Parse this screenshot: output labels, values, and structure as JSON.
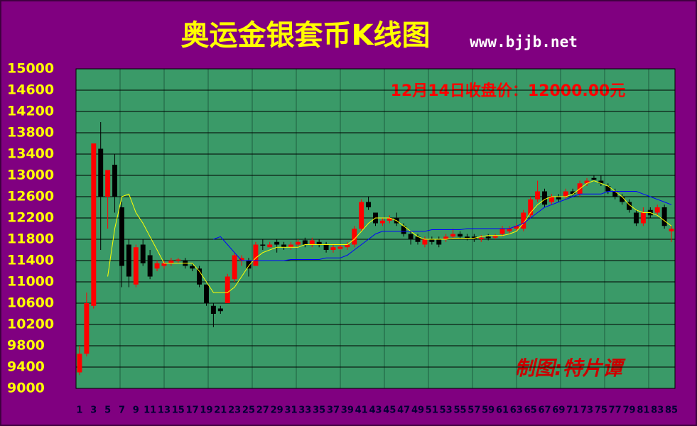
{
  "chart_data": {
    "type": "candlestick",
    "title": "奥运金银套币K线图",
    "subtitle": "www.bjjb.net",
    "annotation": "12月14日收盘价：12000.00元",
    "credit": "制图:特片谭",
    "up_color": "#ff0000",
    "down_color": "#000000",
    "ylim": [
      9000,
      15000
    ],
    "yticks": [
      9000,
      9400,
      9800,
      10200,
      10600,
      11000,
      11400,
      11800,
      12200,
      12600,
      13000,
      13400,
      13800,
      14200,
      14600,
      15000
    ],
    "grid": true,
    "categories": [
      "1",
      null,
      "3",
      null,
      "5",
      null,
      "7",
      null,
      "9",
      null,
      "11",
      null,
      "13",
      null,
      "15",
      null,
      "17",
      null,
      "19",
      null,
      "21",
      null,
      "23",
      null,
      "25",
      null,
      "27",
      null,
      "29",
      null,
      "31",
      null,
      "33",
      null,
      "35",
      null,
      "37",
      null,
      "39",
      null,
      "41",
      null,
      "43",
      null,
      "45",
      null,
      "47",
      null,
      "49",
      null,
      "51",
      null,
      "53",
      null,
      "55",
      null,
      "57",
      null,
      "59",
      null,
      "61",
      null,
      "63",
      null,
      "65",
      null,
      "67",
      null,
      "69",
      null,
      "71",
      null,
      "73",
      null,
      "75",
      null,
      "77",
      null,
      "79",
      null,
      "81",
      null,
      "83",
      null,
      "85"
    ],
    "open": [
      9300,
      9650,
      10550,
      13500,
      12600,
      13200,
      12400,
      11700,
      10950,
      11700,
      11500,
      11250,
      11300,
      11350,
      11400,
      11400,
      11300,
      11250,
      10950,
      10550,
      10500,
      10600,
      11050,
      11400,
      11400,
      11300,
      11700,
      11650,
      11750,
      11700,
      11650,
      11700,
      11780,
      11700,
      11750,
      11700,
      11600,
      11620,
      11650,
      11700,
      12000,
      12500,
      12300,
      12100,
      12150,
      12200,
      12050,
      11900,
      11850,
      11700,
      11800,
      11800,
      11800,
      11850,
      11900,
      11850,
      11850,
      11800,
      11850,
      11830,
      11900,
      11950,
      12000,
      12000,
      12250,
      12550,
      12700,
      12500,
      12600,
      12600,
      12700,
      12650,
      12850,
      12950,
      12900,
      12800,
      12700,
      12600,
      12500,
      12300,
      12100,
      12350,
      12300,
      12400,
      11950
    ],
    "high": [
      9800,
      10800,
      13600,
      14000,
      13100,
      13400,
      12500,
      11800,
      11700,
      11800,
      11600,
      11400,
      11400,
      11450,
      11450,
      11450,
      11350,
      11300,
      10950,
      10600,
      10550,
      11150,
      11550,
      11500,
      11450,
      11750,
      11800,
      11750,
      11800,
      11750,
      11750,
      11800,
      11830,
      11830,
      11800,
      11750,
      11700,
      11700,
      11750,
      12050,
      12550,
      12600,
      12300,
      12200,
      12250,
      12300,
      12100,
      11950,
      11900,
      11850,
      11850,
      11850,
      11900,
      12000,
      11950,
      11900,
      11900,
      11880,
      11900,
      11900,
      12050,
      12050,
      12100,
      12350,
      12600,
      12900,
      12750,
      12650,
      12650,
      12750,
      12750,
      12900,
      12950,
      13000,
      13000,
      12850,
      12750,
      12650,
      12550,
      12350,
      12400,
      12400,
      12450,
      12450,
      12050
    ],
    "low": [
      9250,
      9600,
      10500,
      11600,
      12000,
      12300,
      10900,
      10900,
      10900,
      11300,
      11050,
      11200,
      11250,
      11300,
      11350,
      11250,
      11200,
      10900,
      10550,
      10150,
      10400,
      10600,
      11000,
      11300,
      11100,
      11300,
      11600,
      11650,
      11550,
      11600,
      11600,
      11650,
      11650,
      11650,
      11650,
      11550,
      11550,
      11600,
      11600,
      11650,
      11950,
      12350,
      12050,
      12050,
      12100,
      12050,
      11850,
      11700,
      11700,
      11650,
      11700,
      11650,
      11750,
      11800,
      11800,
      11780,
      11750,
      11750,
      11780,
      11800,
      11850,
      11900,
      11950,
      11950,
      12200,
      12500,
      12400,
      12450,
      12500,
      12550,
      12600,
      12600,
      12800,
      12900,
      12800,
      12650,
      12550,
      12450,
      12300,
      12050,
      12050,
      12200,
      12250,
      12000,
      11750
    ],
    "close": [
      9650,
      10600,
      13600,
      12600,
      13100,
      12600,
      11300,
      11100,
      11650,
      11350,
      11100,
      11350,
      11350,
      11400,
      11420,
      11300,
      11250,
      10950,
      10600,
      10400,
      10450,
      11100,
      11500,
      11450,
      11250,
      11700,
      11680,
      11700,
      11700,
      11650,
      11700,
      11750,
      11700,
      11780,
      11700,
      11600,
      11650,
      11660,
      11700,
      12000,
      12500,
      12400,
      12100,
      12150,
      12200,
      12100,
      11900,
      11800,
      11750,
      11800,
      11750,
      11700,
      11850,
      11900,
      11850,
      11820,
      11800,
      11830,
      11820,
      11860,
      12000,
      12000,
      12050,
      12300,
      12550,
      12700,
      12450,
      12600,
      12550,
      12700,
      12650,
      12850,
      12900,
      12920,
      12850,
      12700,
      12600,
      12500,
      12350,
      12100,
      12300,
      12250,
      12400,
      12050,
      12000
    ],
    "ma_lines": [
      {
        "color": "#ffff00",
        "values": [
          null,
          null,
          null,
          null,
          11100,
          12000,
          12600,
          12650,
          12300,
          12100,
          11850,
          11600,
          11350,
          11350,
          11350,
          11350,
          11350,
          11200,
          11000,
          10800,
          10800,
          10800,
          10900,
          11100,
          11300,
          11450,
          11550,
          11600,
          11650,
          11650,
          11650,
          11650,
          11700,
          11700,
          11700,
          11700,
          11700,
          11700,
          11700,
          11800,
          11950,
          12100,
          12200,
          12200,
          12200,
          12150,
          12050,
          11950,
          11850,
          11800,
          11800,
          11800,
          11800,
          11820,
          11820,
          11820,
          11820,
          11850,
          11870,
          11870,
          11870,
          11900,
          11950,
          12100,
          12300,
          12450,
          12550,
          12600,
          12600,
          12600,
          12650,
          12750,
          12850,
          12900,
          12850,
          12800,
          12700,
          12600,
          12450,
          12350,
          12300,
          12300,
          12250,
          12150,
          12050
        ]
      },
      {
        "color": "#0000ff",
        "values": [
          null,
          null,
          null,
          null,
          null,
          null,
          null,
          null,
          null,
          null,
          null,
          null,
          null,
          null,
          null,
          null,
          null,
          null,
          null,
          11800,
          11850,
          11700,
          11550,
          11400,
          11400,
          11400,
          11400,
          11400,
          11400,
          11400,
          11420,
          11420,
          11420,
          11420,
          11420,
          11450,
          11450,
          11450,
          11500,
          11600,
          11700,
          11800,
          11900,
          11950,
          11950,
          11950,
          11950,
          11950,
          11950,
          11950,
          11980,
          11980,
          11980,
          11980,
          11980,
          12000,
          12000,
          12000,
          12000,
          12000,
          12000,
          12000,
          12050,
          12100,
          12200,
          12300,
          12400,
          12450,
          12500,
          12550,
          12600,
          12650,
          12650,
          12650,
          12650,
          12700,
          12700,
          12700,
          12700,
          12700,
          12650,
          12600,
          12550,
          12500,
          12450
        ]
      }
    ]
  }
}
